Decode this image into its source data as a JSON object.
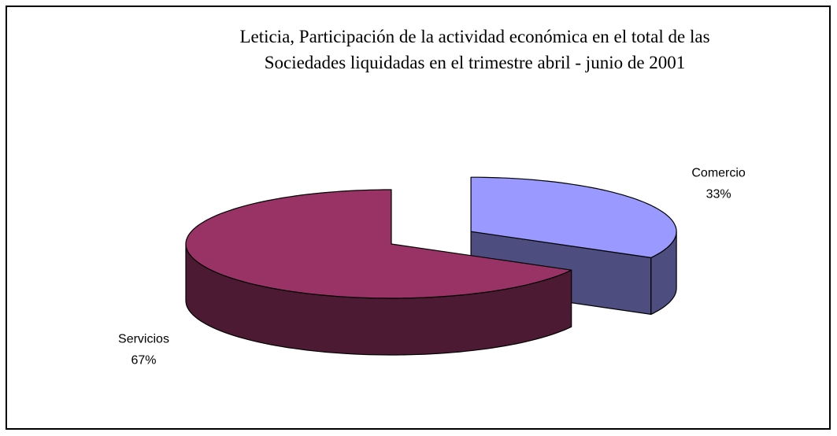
{
  "chart_data": {
    "type": "pie",
    "title": [
      "Leticia, Participación de la actividad económica en el total de las",
      "Sociedades liquidadas en el trimestre abril - junio de 2001"
    ],
    "categories": [
      "Comercio",
      "Servicios"
    ],
    "values": [
      33,
      67
    ],
    "value_labels": [
      "33%",
      "67%"
    ],
    "colors": [
      "#9999ff",
      "#993366"
    ]
  }
}
